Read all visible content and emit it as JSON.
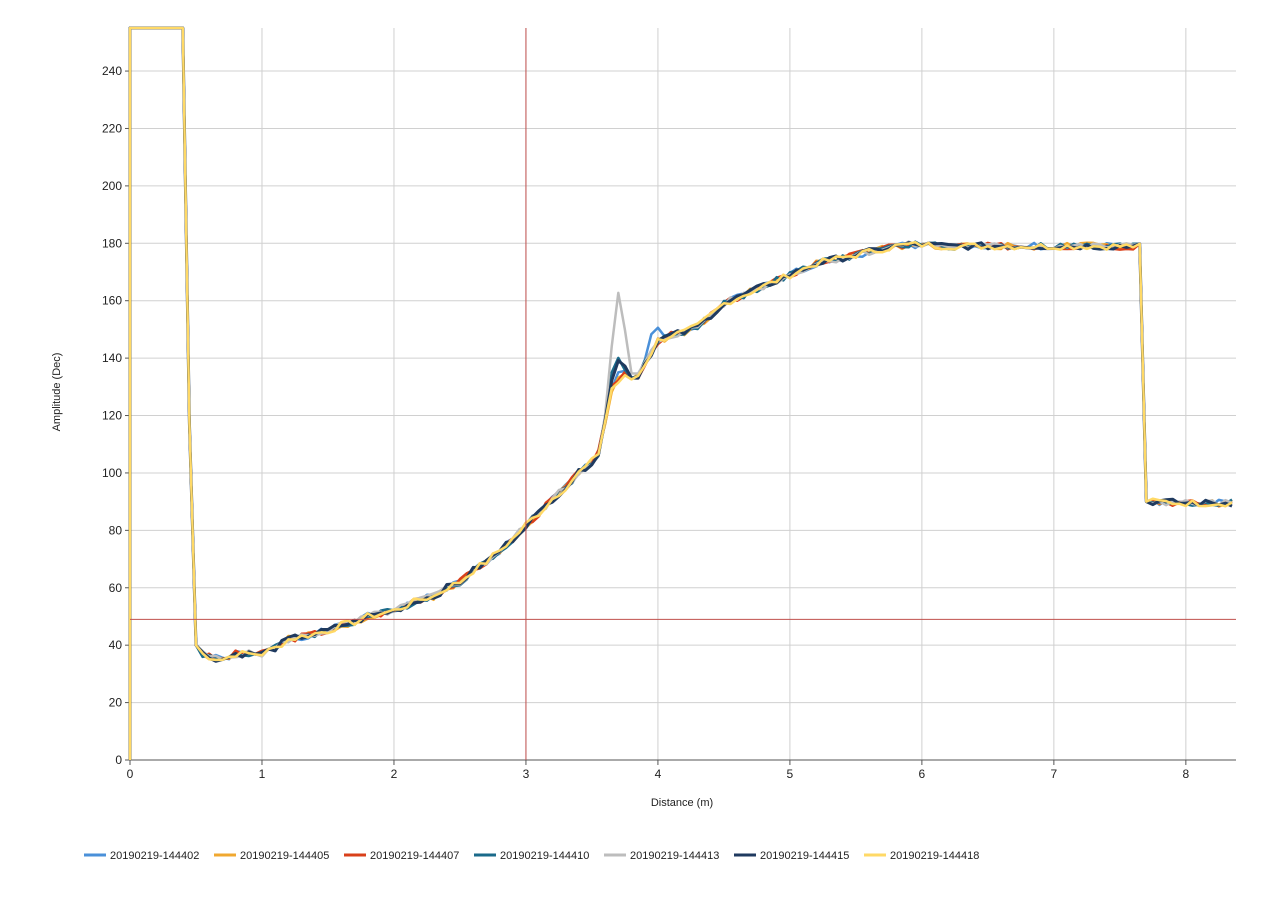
{
  "chart_data": {
    "type": "line",
    "xlabel": "Distance (m)",
    "ylabel": "Amplitude (Dec)",
    "xlim": [
      0,
      8.38
    ],
    "ylim": [
      0,
      255
    ],
    "x_ticks": [
      0,
      1,
      2,
      3,
      4,
      5,
      6,
      7,
      8
    ],
    "y_ticks": [
      0,
      20,
      40,
      60,
      80,
      100,
      120,
      140,
      160,
      180,
      200,
      220,
      240
    ],
    "grid": true,
    "legend_position": "bottom",
    "cursor": {
      "x": 3.0,
      "y": 49,
      "color": "#c0504d"
    },
    "base_profile": [
      [
        0,
        255
      ],
      [
        0.4,
        255
      ],
      [
        0.46,
        90
      ],
      [
        0.5,
        40
      ],
      [
        0.55,
        37
      ],
      [
        0.6,
        36
      ],
      [
        0.7,
        35
      ],
      [
        0.8,
        37
      ],
      [
        0.9,
        37
      ],
      [
        1.0,
        37
      ],
      [
        1.1,
        39
      ],
      [
        1.2,
        42
      ],
      [
        1.3,
        43
      ],
      [
        1.4,
        44
      ],
      [
        1.5,
        45
      ],
      [
        1.6,
        47
      ],
      [
        1.7,
        48
      ],
      [
        1.8,
        50
      ],
      [
        1.9,
        51
      ],
      [
        2.0,
        52
      ],
      [
        2.1,
        54
      ],
      [
        2.2,
        56
      ],
      [
        2.3,
        57
      ],
      [
        2.4,
        60
      ],
      [
        2.5,
        62
      ],
      [
        2.6,
        66
      ],
      [
        2.7,
        69
      ],
      [
        2.8,
        73
      ],
      [
        2.9,
        77
      ],
      [
        3.0,
        82
      ],
      [
        3.1,
        86
      ],
      [
        3.2,
        91
      ],
      [
        3.3,
        95
      ],
      [
        3.4,
        100
      ],
      [
        3.5,
        104
      ],
      [
        3.55,
        107
      ],
      [
        3.6,
        118
      ],
      [
        3.65,
        130
      ],
      [
        3.7,
        135
      ],
      [
        3.75,
        136
      ],
      [
        3.8,
        133
      ],
      [
        3.85,
        134
      ],
      [
        3.9,
        138
      ],
      [
        3.95,
        142
      ],
      [
        4.0,
        146
      ],
      [
        4.1,
        148
      ],
      [
        4.2,
        149
      ],
      [
        4.3,
        151
      ],
      [
        4.4,
        155
      ],
      [
        4.5,
        159
      ],
      [
        4.6,
        161
      ],
      [
        4.7,
        163
      ],
      [
        4.8,
        165
      ],
      [
        4.9,
        167
      ],
      [
        5.0,
        169
      ],
      [
        5.1,
        171
      ],
      [
        5.2,
        173
      ],
      [
        5.3,
        174
      ],
      [
        5.4,
        175
      ],
      [
        5.5,
        176
      ],
      [
        5.6,
        177
      ],
      [
        5.7,
        178
      ],
      [
        5.8,
        179
      ],
      [
        5.9,
        179.5
      ],
      [
        6.0,
        179.5
      ],
      [
        6.2,
        179
      ],
      [
        6.4,
        179
      ],
      [
        6.6,
        179
      ],
      [
        6.8,
        179
      ],
      [
        7.0,
        179
      ],
      [
        7.2,
        179
      ],
      [
        7.4,
        179
      ],
      [
        7.6,
        179
      ],
      [
        7.66,
        180
      ],
      [
        7.7,
        90
      ],
      [
        7.8,
        90
      ],
      [
        8.0,
        89.5
      ],
      [
        8.2,
        89.5
      ],
      [
        8.38,
        89.5
      ]
    ],
    "series": [
      {
        "name": "20190219-144402",
        "color": "#4a90d9",
        "width": 2.5,
        "seed": 1,
        "bump": {
          "x": 3.97,
          "dy": 6,
          "w": 0.05
        }
      },
      {
        "name": "20190219-144405",
        "color": "#f0a830",
        "width": 2.5,
        "seed": 2,
        "bump": {
          "x": 3.72,
          "dy": -3,
          "w": 0.06
        }
      },
      {
        "name": "20190219-144407",
        "color": "#d9401a",
        "width": 2.5,
        "seed": 3,
        "bump": {
          "x": 3.7,
          "dy": -2,
          "w": 0.05
        }
      },
      {
        "name": "20190219-144410",
        "color": "#1a6a8a",
        "width": 2.5,
        "seed": 4,
        "bump": {
          "x": 3.68,
          "dy": 6,
          "w": 0.05
        }
      },
      {
        "name": "20190219-144413",
        "color": "#bdbdbd",
        "width": 2.5,
        "seed": 5,
        "bump": {
          "x": 3.7,
          "dy": 27,
          "w": 0.06
        }
      },
      {
        "name": "20190219-144415",
        "color": "#1f3a5f",
        "width": 3,
        "seed": 6,
        "bump": {
          "x": 3.7,
          "dy": 5,
          "w": 0.05
        }
      },
      {
        "name": "20190219-144418",
        "color": "#ffd966",
        "width": 2.5,
        "seed": 7,
        "bump": {
          "x": 3.72,
          "dy": -4,
          "w": 0.05
        }
      }
    ]
  }
}
